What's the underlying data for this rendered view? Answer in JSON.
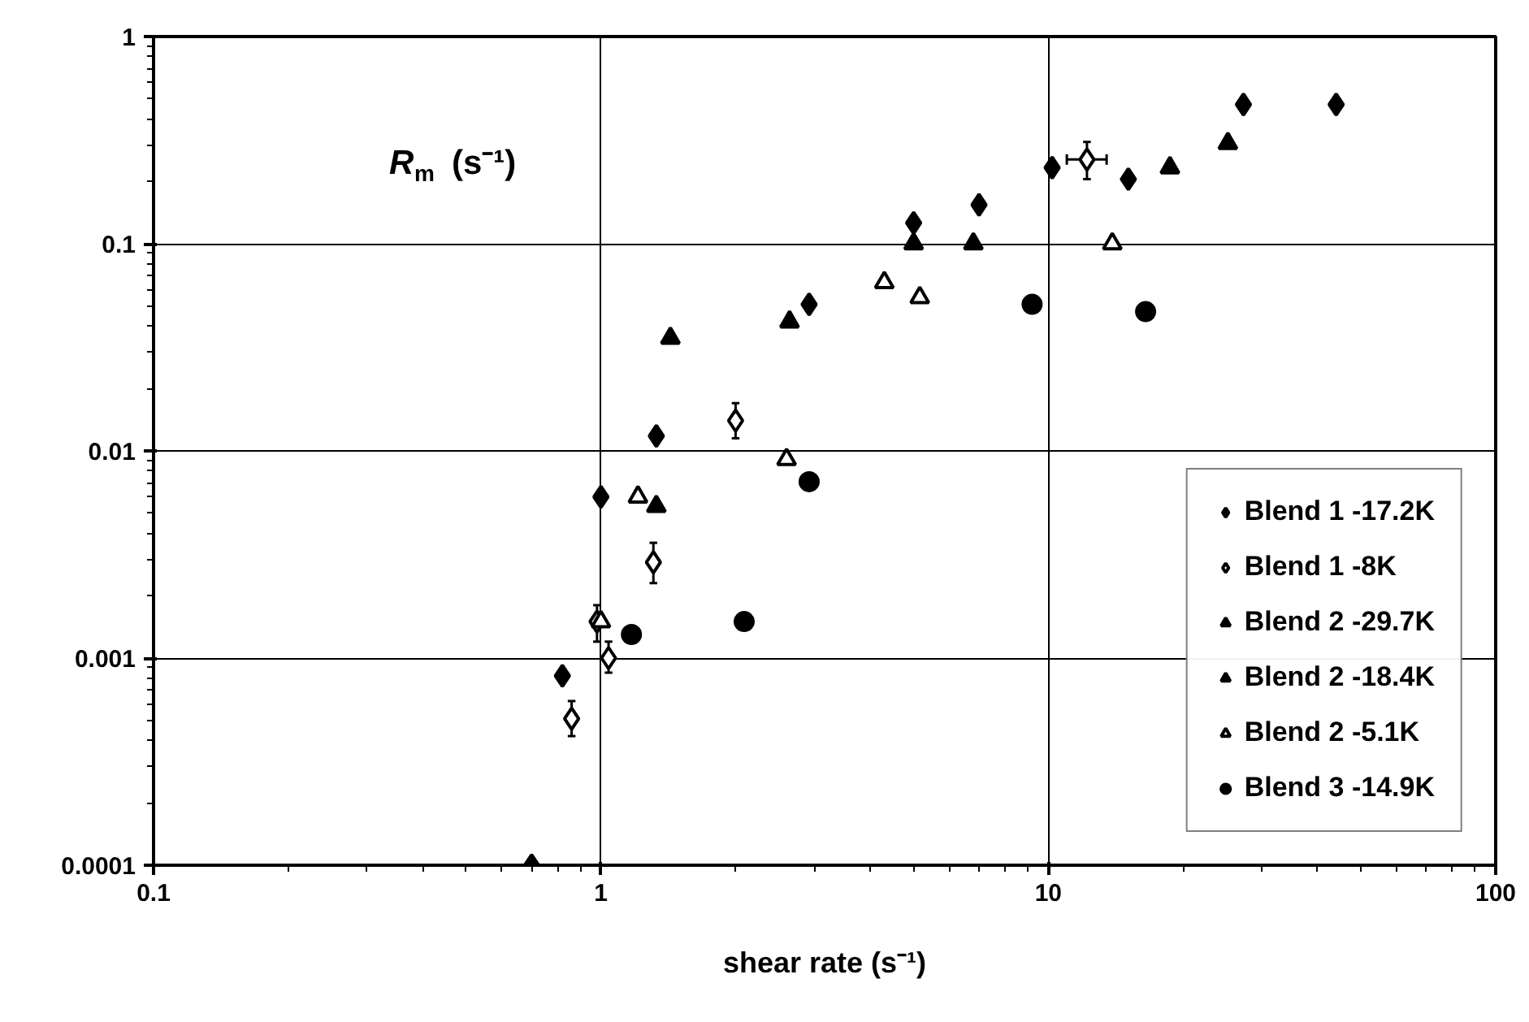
{
  "chart_data": {
    "type": "scatter",
    "xlabel": "shear rate (s⁻¹)",
    "ylabel": "R$_{m}$ (s⁻¹)",
    "log": "xy",
    "xlim": [
      0.1,
      100
    ],
    "ylim": [
      0.0001,
      1
    ],
    "xticks": [
      0.1,
      1,
      10,
      100
    ],
    "yticks": [
      0.0001,
      0.001,
      0.01,
      0.1,
      1
    ],
    "grid": true,
    "legend": "bottom right",
    "series": [
      {
        "name": "Blend 1 -17.2K",
        "color": "#000000",
        "marker": "diamond",
        "x": [
          0.7,
          0.82,
          1.0,
          1.33,
          2.92,
          5.0,
          7.0,
          10.2,
          15.1,
          27.3,
          44
        ],
        "values": [
          0.0001,
          0.00082,
          0.006,
          0.0118,
          0.051,
          0.126,
          0.154,
          0.233,
          0.205,
          0.47,
          0.47
        ]
      },
      {
        "name": "Blend 1 -8K",
        "color": "#ffffff",
        "marker": "diamond",
        "x": [
          0.86,
          0.98,
          1.04,
          1.31,
          2.0,
          12.2
        ],
        "values": [
          0.00051,
          0.0015,
          0.001,
          0.0029,
          0.014,
          0.255
        ],
        "errors": [
          [
            0.00042,
            0.00062
          ],
          [
            0.0012,
            0.0018
          ],
          [
            0.00085,
            0.0012
          ],
          [
            0.0023,
            0.0036
          ],
          [
            0.0115,
            0.017
          ],
          [
            0.205,
            0.31
          ]
        ],
        "xerrors": [
          null,
          null,
          null,
          null,
          null,
          [
            11.0,
            13.5
          ]
        ]
      },
      {
        "name": "Blend 2 -29.7K",
        "color": "#000000",
        "marker": "triangle",
        "x": [
          1.33,
          2.64,
          6.8,
          25.2
        ],
        "values": [
          0.0054,
          0.042,
          0.1,
          0.305
        ]
      },
      {
        "name": "Blend 2 -18.4K",
        "color": "#000000",
        "marker": "triangle",
        "x": [
          1.43,
          5.0,
          18.7
        ],
        "values": [
          0.035,
          0.1,
          0.233
        ]
      },
      {
        "name": "Blend 2 -5.1K",
        "color": "#ffffff",
        "marker": "triangle",
        "x": [
          1.0,
          1.21,
          2.6,
          4.3,
          5.16,
          13.9
        ],
        "values": [
          0.0015,
          0.006,
          0.0091,
          0.065,
          0.055,
          0.1
        ]
      },
      {
        "name": "Blend 3 -14.9K",
        "color": "#000000",
        "marker": "circle",
        "x": [
          1.17,
          2.09,
          2.92,
          9.2,
          16.5
        ],
        "values": [
          0.0013,
          0.0015,
          0.0071,
          0.051,
          0.047
        ]
      }
    ]
  }
}
